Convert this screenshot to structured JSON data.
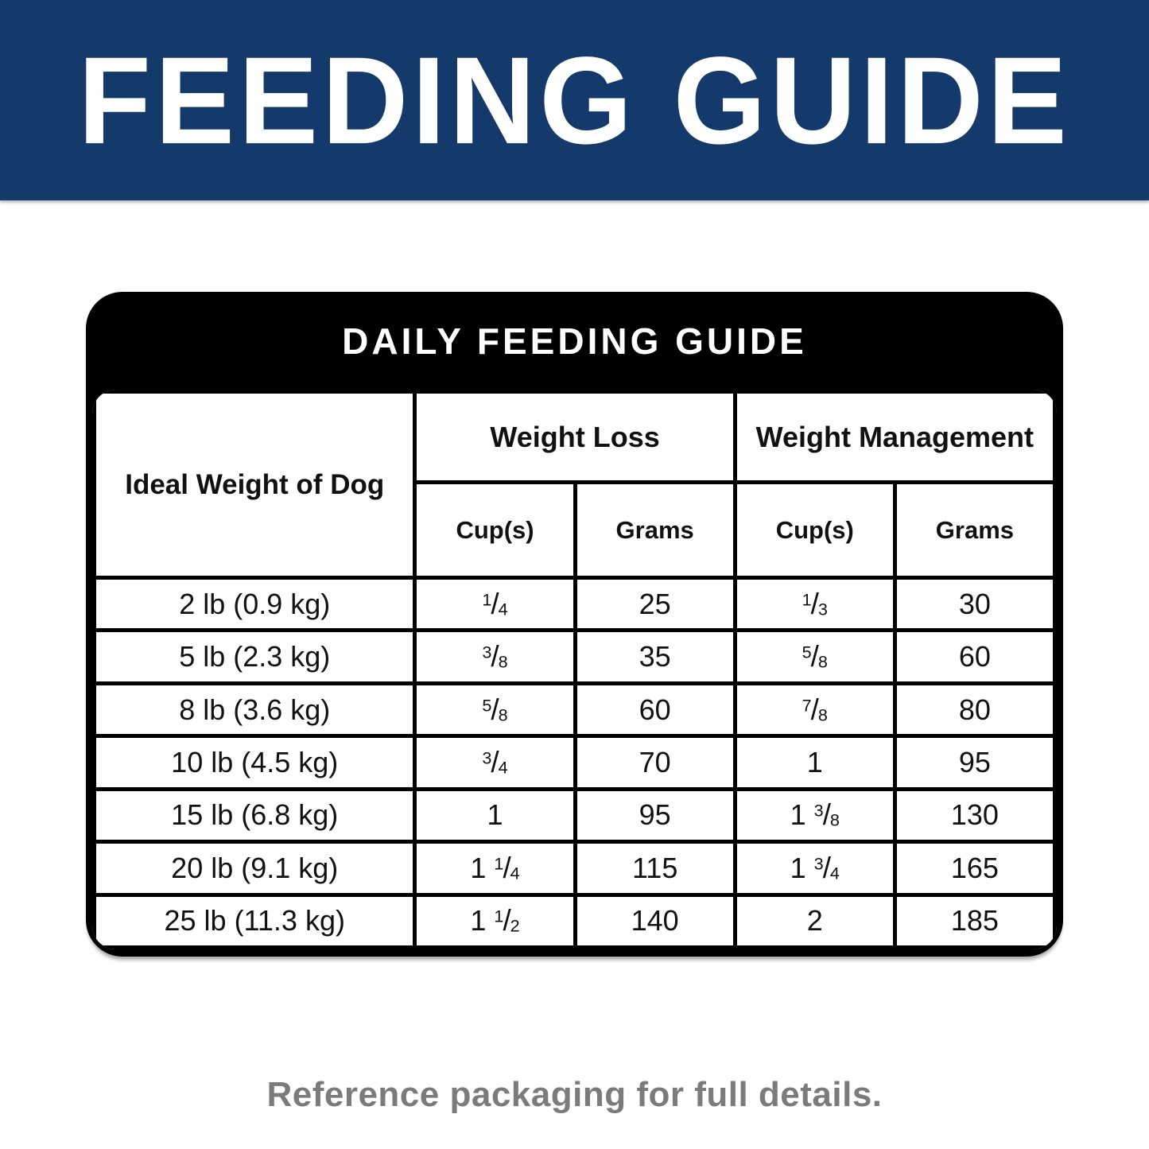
{
  "banner": {
    "title": "FEEDING GUIDE"
  },
  "card": {
    "title": "DAILY FEEDING GUIDE",
    "headers": {
      "ideal_weight": "Ideal Weight of Dog",
      "weight_loss": "Weight Loss",
      "weight_management": "Weight Management",
      "cups": "Cup(s)",
      "grams": "Grams"
    },
    "rows": [
      {
        "weight": "2 lb (0.9 kg)",
        "wl_cups": "1/4",
        "wl_grams": "25",
        "wm_cups": "1/3",
        "wm_grams": "30"
      },
      {
        "weight": "5 lb (2.3 kg)",
        "wl_cups": "3/8",
        "wl_grams": "35",
        "wm_cups": "5/8",
        "wm_grams": "60"
      },
      {
        "weight": "8 lb (3.6 kg)",
        "wl_cups": "5/8",
        "wl_grams": "60",
        "wm_cups": "7/8",
        "wm_grams": "80"
      },
      {
        "weight": "10 lb (4.5 kg)",
        "wl_cups": "3/4",
        "wl_grams": "70",
        "wm_cups": "1",
        "wm_grams": "95"
      },
      {
        "weight": "15 lb (6.8 kg)",
        "wl_cups": "1",
        "wl_grams": "95",
        "wm_cups": "1 3/8",
        "wm_grams": "130"
      },
      {
        "weight": "20 lb (9.1 kg)",
        "wl_cups": "1 1/4",
        "wl_grams": "115",
        "wm_cups": "1 3/4",
        "wm_grams": "165"
      },
      {
        "weight": "25 lb (11.3 kg)",
        "wl_cups": "1 1/2",
        "wl_grams": "140",
        "wm_cups": "2",
        "wm_grams": "185"
      }
    ]
  },
  "footer": {
    "note": "Reference packaging for full details."
  },
  "colors": {
    "banner_bg": "#14396B",
    "card_bg": "#000000",
    "table_bg": "#FFFFFF",
    "footer_text": "#7B7B7B"
  }
}
